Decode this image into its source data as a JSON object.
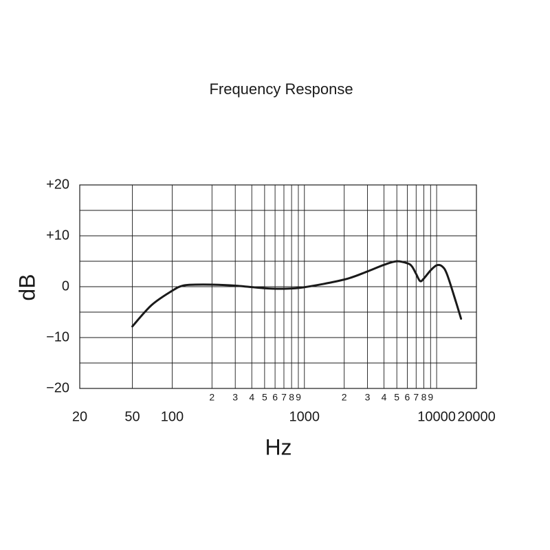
{
  "chart_data": {
    "type": "line",
    "title": "Frequency Response",
    "x_label": "Hz",
    "y_label": "dB",
    "x_scale": "log",
    "grid": true,
    "x": [
      50,
      70,
      100,
      120,
      150,
      200,
      300,
      500,
      700,
      1000,
      2000,
      3000,
      4000,
      5000,
      6000,
      6500,
      7000,
      7500,
      8000,
      9000,
      10000,
      11000,
      12000,
      14000,
      15300
    ],
    "series": [
      {
        "color": "#1a1a1a",
        "values": [
          -7.8,
          -3.6,
          -0.8,
          0.2,
          0.4,
          0.4,
          0.2,
          -0.3,
          -0.4,
          -0.1,
          1.4,
          3.0,
          4.3,
          5.0,
          4.6,
          4.0,
          2.5,
          1.1,
          1.6,
          3.2,
          4.2,
          4.0,
          2.4,
          -3.0,
          -6.3
        ]
      }
    ],
    "xlim": [
      20,
      20000
    ],
    "ylim": [
      -20,
      20
    ],
    "xticks": [
      20,
      50,
      100,
      1000,
      10000,
      20000
    ],
    "xminorticks": [
      {
        "value": 200,
        "label": "2"
      },
      {
        "value": 300,
        "label": "3"
      },
      {
        "value": 400,
        "label": "4"
      },
      {
        "value": 500,
        "label": "5"
      },
      {
        "value": 600,
        "label": "6"
      },
      {
        "value": 700,
        "label": "7"
      },
      {
        "value": 800,
        "label": "8"
      },
      {
        "value": 900,
        "label": "9"
      },
      {
        "value": 2000,
        "label": "2"
      },
      {
        "value": 3000,
        "label": "3"
      },
      {
        "value": 4000,
        "label": "4"
      },
      {
        "value": 5000,
        "label": "5"
      },
      {
        "value": 6000,
        "label": "6"
      },
      {
        "value": 7000,
        "label": "7"
      },
      {
        "value": 8000,
        "label": "8"
      },
      {
        "value": 9000,
        "label": "9"
      }
    ],
    "yticks": [
      {
        "value": 20,
        "label": "+20"
      },
      {
        "value": 10,
        "label": "+10"
      },
      0,
      {
        "value": -10,
        "label": "−10"
      },
      {
        "value": -20,
        "label": "−20"
      }
    ],
    "yminorticks": [
      15,
      5,
      -5,
      -15
    ]
  }
}
